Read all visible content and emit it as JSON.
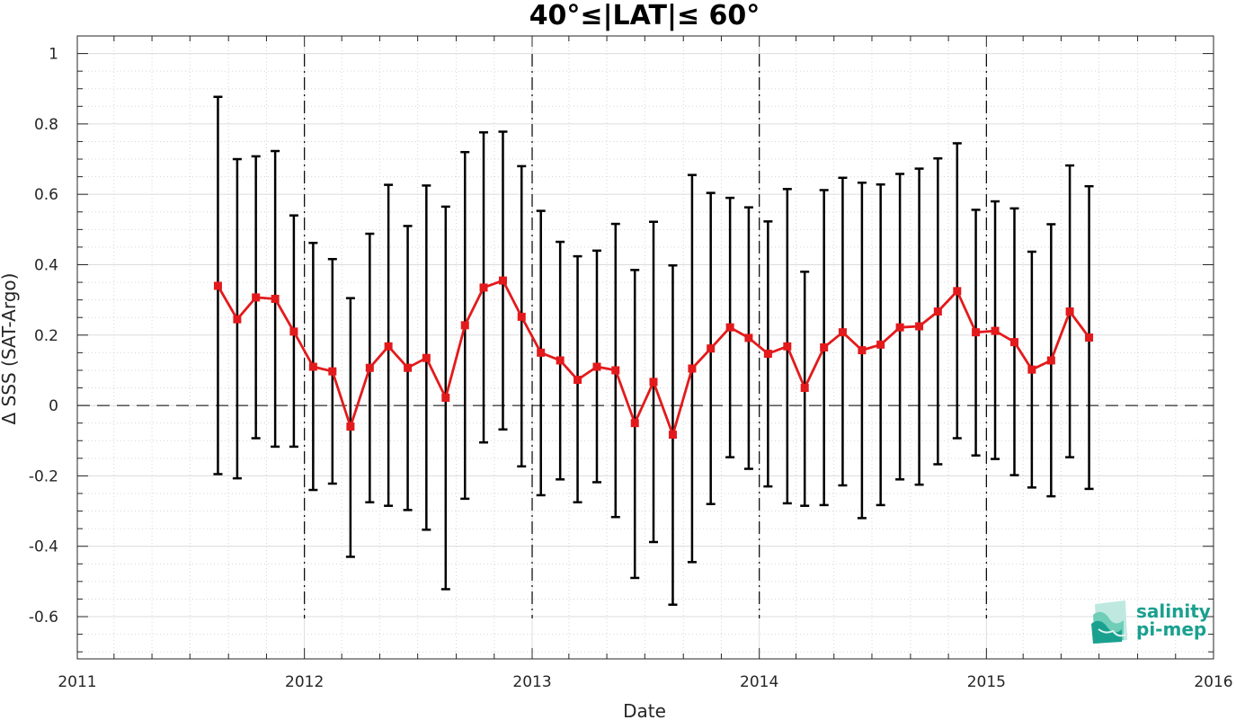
{
  "chart_data": {
    "type": "line",
    "title": "40°≤|LAT|≤ 60°",
    "xlabel": "Date",
    "ylabel": "Δ SSS (SAT-Argo)",
    "xlim": [
      "2011-01-01",
      "2016-01-01"
    ],
    "ylim": [
      -0.72,
      1.05
    ],
    "x_ticks": [
      "2011",
      "2012",
      "2013",
      "2014",
      "2015",
      "2016"
    ],
    "y_ticks": [
      1,
      0.8,
      0.6,
      0.4,
      0.2,
      0,
      -0.2,
      -0.4,
      -0.6
    ],
    "y_tick_labels": [
      "1",
      "0.8",
      "0.6",
      "0.4",
      "0.2",
      "0",
      "-0.2",
      "-0.4",
      "-0.6"
    ],
    "grid": true,
    "year_boundaries": [
      "2012-01-01",
      "2013-01-01",
      "2014-01-01",
      "2015-01-01"
    ],
    "zero_line": 0,
    "series": [
      {
        "color": "#e31a1c",
        "errorbar_color": "#000000",
        "marker": "square",
        "points": [
          {
            "date": "2011-08-15",
            "mean": 0.34,
            "lower": -0.195,
            "upper": 0.877
          },
          {
            "date": "2011-09-15",
            "mean": 0.245,
            "lower": -0.207,
            "upper": 0.7
          },
          {
            "date": "2011-10-15",
            "mean": 0.307,
            "lower": -0.093,
            "upper": 0.708
          },
          {
            "date": "2011-11-15",
            "mean": 0.303,
            "lower": -0.117,
            "upper": 0.723
          },
          {
            "date": "2011-12-15",
            "mean": 0.21,
            "lower": -0.117,
            "upper": 0.54
          },
          {
            "date": "2012-01-15",
            "mean": 0.11,
            "lower": -0.24,
            "upper": 0.462
          },
          {
            "date": "2012-02-15",
            "mean": 0.097,
            "lower": -0.222,
            "upper": 0.416
          },
          {
            "date": "2012-03-15",
            "mean": -0.06,
            "lower": -0.43,
            "upper": 0.305
          },
          {
            "date": "2012-04-15",
            "mean": 0.107,
            "lower": -0.275,
            "upper": 0.488
          },
          {
            "date": "2012-05-15",
            "mean": 0.168,
            "lower": -0.285,
            "upper": 0.627
          },
          {
            "date": "2012-06-15",
            "mean": 0.107,
            "lower": -0.297,
            "upper": 0.51
          },
          {
            "date": "2012-07-15",
            "mean": 0.135,
            "lower": -0.353,
            "upper": 0.625
          },
          {
            "date": "2012-08-15",
            "mean": 0.022,
            "lower": -0.522,
            "upper": 0.565
          },
          {
            "date": "2012-09-15",
            "mean": 0.228,
            "lower": -0.265,
            "upper": 0.72
          },
          {
            "date": "2012-10-15",
            "mean": 0.335,
            "lower": -0.105,
            "upper": 0.776
          },
          {
            "date": "2012-11-15",
            "mean": 0.355,
            "lower": -0.068,
            "upper": 0.778
          },
          {
            "date": "2012-12-15",
            "mean": 0.252,
            "lower": -0.173,
            "upper": 0.68
          },
          {
            "date": "2013-01-15",
            "mean": 0.15,
            "lower": -0.255,
            "upper": 0.553
          },
          {
            "date": "2013-02-15",
            "mean": 0.128,
            "lower": -0.21,
            "upper": 0.465
          },
          {
            "date": "2013-03-15",
            "mean": 0.073,
            "lower": -0.275,
            "upper": 0.424
          },
          {
            "date": "2013-04-15",
            "mean": 0.11,
            "lower": -0.218,
            "upper": 0.44
          },
          {
            "date": "2013-05-15",
            "mean": 0.1,
            "lower": -0.317,
            "upper": 0.516
          },
          {
            "date": "2013-06-15",
            "mean": -0.05,
            "lower": -0.49,
            "upper": 0.385
          },
          {
            "date": "2013-07-15",
            "mean": 0.067,
            "lower": -0.388,
            "upper": 0.522
          },
          {
            "date": "2013-08-15",
            "mean": -0.083,
            "lower": -0.566,
            "upper": 0.398
          },
          {
            "date": "2013-09-15",
            "mean": 0.105,
            "lower": -0.445,
            "upper": 0.655
          },
          {
            "date": "2013-10-15",
            "mean": 0.162,
            "lower": -0.28,
            "upper": 0.604
          },
          {
            "date": "2013-11-15",
            "mean": 0.222,
            "lower": -0.147,
            "upper": 0.59
          },
          {
            "date": "2013-12-15",
            "mean": 0.192,
            "lower": -0.18,
            "upper": 0.563
          },
          {
            "date": "2014-01-15",
            "mean": 0.147,
            "lower": -0.23,
            "upper": 0.523
          },
          {
            "date": "2014-02-15",
            "mean": 0.168,
            "lower": -0.278,
            "upper": 0.615
          },
          {
            "date": "2014-03-15",
            "mean": 0.05,
            "lower": -0.285,
            "upper": 0.38
          },
          {
            "date": "2014-04-15",
            "mean": 0.165,
            "lower": -0.283,
            "upper": 0.612
          },
          {
            "date": "2014-05-15",
            "mean": 0.208,
            "lower": -0.227,
            "upper": 0.647
          },
          {
            "date": "2014-06-15",
            "mean": 0.157,
            "lower": -0.32,
            "upper": 0.633
          },
          {
            "date": "2014-07-15",
            "mean": 0.173,
            "lower": -0.283,
            "upper": 0.628
          },
          {
            "date": "2014-08-15",
            "mean": 0.222,
            "lower": -0.21,
            "upper": 0.658
          },
          {
            "date": "2014-09-15",
            "mean": 0.225,
            "lower": -0.225,
            "upper": 0.673
          },
          {
            "date": "2014-10-15",
            "mean": 0.267,
            "lower": -0.167,
            "upper": 0.702
          },
          {
            "date": "2014-11-15",
            "mean": 0.325,
            "lower": -0.093,
            "upper": 0.745
          },
          {
            "date": "2014-12-15",
            "mean": 0.208,
            "lower": -0.142,
            "upper": 0.556
          },
          {
            "date": "2015-01-15",
            "mean": 0.212,
            "lower": -0.152,
            "upper": 0.58
          },
          {
            "date": "2015-02-15",
            "mean": 0.18,
            "lower": -0.198,
            "upper": 0.56
          },
          {
            "date": "2015-03-15",
            "mean": 0.102,
            "lower": -0.233,
            "upper": 0.437
          },
          {
            "date": "2015-04-15",
            "mean": 0.128,
            "lower": -0.258,
            "upper": 0.515
          },
          {
            "date": "2015-05-15",
            "mean": 0.267,
            "lower": -0.147,
            "upper": 0.682
          },
          {
            "date": "2015-06-15",
            "mean": 0.193,
            "lower": -0.237,
            "upper": 0.623
          }
        ]
      }
    ]
  },
  "logo": {
    "line1": "salinity",
    "line2": "pi-mep",
    "color": "#1aa08f"
  }
}
